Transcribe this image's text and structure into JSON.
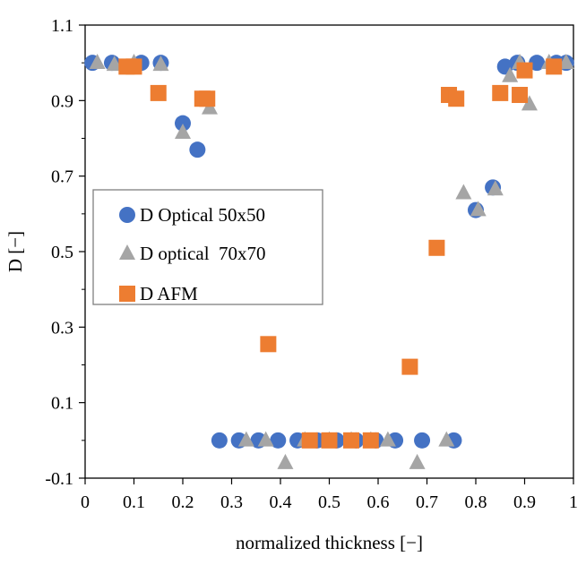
{
  "chart_data": {
    "type": "scatter",
    "title": "",
    "xlabel": "normalized thickness [−]",
    "ylabel": "D [−]",
    "xlim": [
      0,
      1
    ],
    "ylim": [
      -0.1,
      1.1
    ],
    "x_ticks": [
      0,
      0.1,
      0.2,
      0.3,
      0.4,
      0.5,
      0.6,
      0.7,
      0.8,
      0.9,
      1
    ],
    "x_tick_labels": [
      "0",
      "0.1",
      "0.2",
      "0.3",
      "0.4",
      "0.5",
      "0.6",
      "0.7",
      "0.8",
      "0.9",
      "1"
    ],
    "y_ticks": [
      -0.1,
      0.1,
      0.3,
      0.5,
      0.7,
      0.9,
      1.1
    ],
    "y_tick_labels": [
      "-0.1",
      "0.1",
      "0.3",
      "0.5",
      "0.7",
      "0.9",
      "1.1"
    ],
    "grid": false,
    "legend_position": "middle-left",
    "series": [
      {
        "name": "D Optical 50x50",
        "marker": "circle",
        "color": "#4472C4",
        "points": [
          [
            0.015,
            1.0
          ],
          [
            0.055,
            1.0
          ],
          [
            0.115,
            1.0
          ],
          [
            0.155,
            1.0
          ],
          [
            0.2,
            0.84
          ],
          [
            0.23,
            0.77
          ],
          [
            0.275,
            0.0
          ],
          [
            0.315,
            0.0
          ],
          [
            0.355,
            0.0
          ],
          [
            0.395,
            0.0
          ],
          [
            0.435,
            0.0
          ],
          [
            0.475,
            0.0
          ],
          [
            0.515,
            0.0
          ],
          [
            0.555,
            0.0
          ],
          [
            0.595,
            0.0
          ],
          [
            0.635,
            0.0
          ],
          [
            0.69,
            0.0
          ],
          [
            0.755,
            0.0
          ],
          [
            0.8,
            0.61
          ],
          [
            0.835,
            0.67
          ],
          [
            0.86,
            0.99
          ],
          [
            0.885,
            1.0
          ],
          [
            0.925,
            1.0
          ],
          [
            0.965,
            1.0
          ],
          [
            0.985,
            1.0
          ]
        ]
      },
      {
        "name": "D optical  70x70",
        "marker": "triangle",
        "color": "#A5A5A5",
        "points": [
          [
            0.025,
            1.0
          ],
          [
            0.06,
            0.995
          ],
          [
            0.1,
            1.0
          ],
          [
            0.155,
            0.995
          ],
          [
            0.2,
            0.815
          ],
          [
            0.255,
            0.88
          ],
          [
            0.33,
            0.0
          ],
          [
            0.37,
            0.0
          ],
          [
            0.41,
            -0.06
          ],
          [
            0.45,
            0.0
          ],
          [
            0.5,
            0.0
          ],
          [
            0.545,
            0.0
          ],
          [
            0.585,
            0.0
          ],
          [
            0.62,
            0.0
          ],
          [
            0.68,
            -0.06
          ],
          [
            0.74,
            0.0
          ],
          [
            0.775,
            0.655
          ],
          [
            0.805,
            0.61
          ],
          [
            0.84,
            0.665
          ],
          [
            0.87,
            0.965
          ],
          [
            0.89,
            1.0
          ],
          [
            0.91,
            0.89
          ],
          [
            0.95,
            1.0
          ],
          [
            0.985,
            1.0
          ]
        ]
      },
      {
        "name": "D AFM",
        "marker": "square",
        "color": "#ED7D31",
        "points": [
          [
            0.085,
            0.99
          ],
          [
            0.1,
            0.99
          ],
          [
            0.15,
            0.92
          ],
          [
            0.24,
            0.905
          ],
          [
            0.25,
            0.905
          ],
          [
            0.375,
            0.255
          ],
          [
            0.46,
            0.0
          ],
          [
            0.5,
            0.0
          ],
          [
            0.545,
            0.0
          ],
          [
            0.585,
            0.0
          ],
          [
            0.665,
            0.195
          ],
          [
            0.72,
            0.51
          ],
          [
            0.745,
            0.915
          ],
          [
            0.76,
            0.905
          ],
          [
            0.85,
            0.92
          ],
          [
            0.89,
            0.915
          ],
          [
            0.9,
            0.98
          ],
          [
            0.96,
            0.99
          ]
        ]
      }
    ]
  }
}
